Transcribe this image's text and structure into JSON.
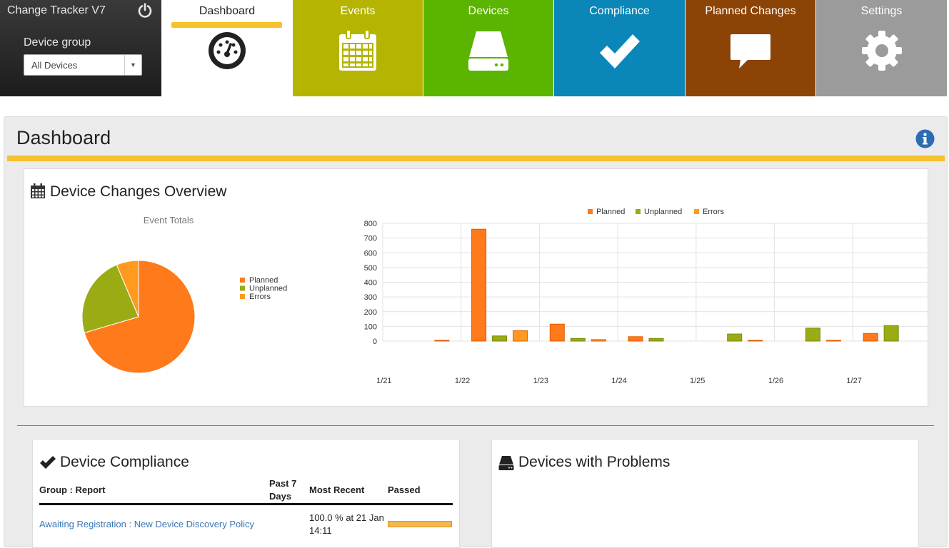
{
  "app": {
    "title": "Change Tracker V7",
    "device_group_label": "Device group",
    "device_group_value": "All Devices"
  },
  "nav": {
    "dashboard": "Dashboard",
    "events": "Events",
    "devices": "Devices",
    "compliance": "Compliance",
    "planned": "Planned Changes",
    "settings": "Settings"
  },
  "page": {
    "title": "Dashboard"
  },
  "overview": {
    "title": "Device Changes Overview"
  },
  "colors": {
    "planned": "#ff7a1a",
    "unplanned": "#9aab14",
    "errors": "#ff9a1f",
    "accent": "#f5c12d"
  },
  "chart_data": [
    {
      "type": "pie",
      "title": "Event Totals",
      "legend_position": "right",
      "labels": [
        "Planned",
        "Unplanned",
        "Errors"
      ],
      "values": [
        965,
        318,
        87
      ]
    },
    {
      "type": "bar",
      "categories": [
        "1/21",
        "1/22",
        "1/23",
        "1/24",
        "1/25",
        "1/26",
        "1/27"
      ],
      "series": [
        {
          "name": "Planned",
          "values": [
            0,
            760,
            115,
            30,
            0,
            0,
            52
          ]
        },
        {
          "name": "Unplanned",
          "values": [
            0,
            35,
            18,
            18,
            48,
            88,
            105
          ]
        },
        {
          "name": "Errors",
          "values": [
            2,
            70,
            10,
            0,
            2,
            2,
            0
          ]
        }
      ],
      "ylim": [
        0,
        800
      ],
      "yticks": [
        0,
        100,
        200,
        300,
        400,
        500,
        600,
        700,
        800
      ],
      "legend_position": "top",
      "grid": true
    }
  ],
  "compliance": {
    "title": "Device Compliance",
    "headers": {
      "group": "Group : Report",
      "past7_line1": "Past 7",
      "past7_line2": "Days",
      "recent": "Most Recent",
      "passed": "Passed"
    },
    "rows": [
      {
        "report": "Awaiting Registration : New Device Discovery Policy",
        "recent": "100.0 % at 21 Jan 14:11",
        "passed": 1.0
      }
    ]
  },
  "problems": {
    "title": "Devices with Problems"
  }
}
